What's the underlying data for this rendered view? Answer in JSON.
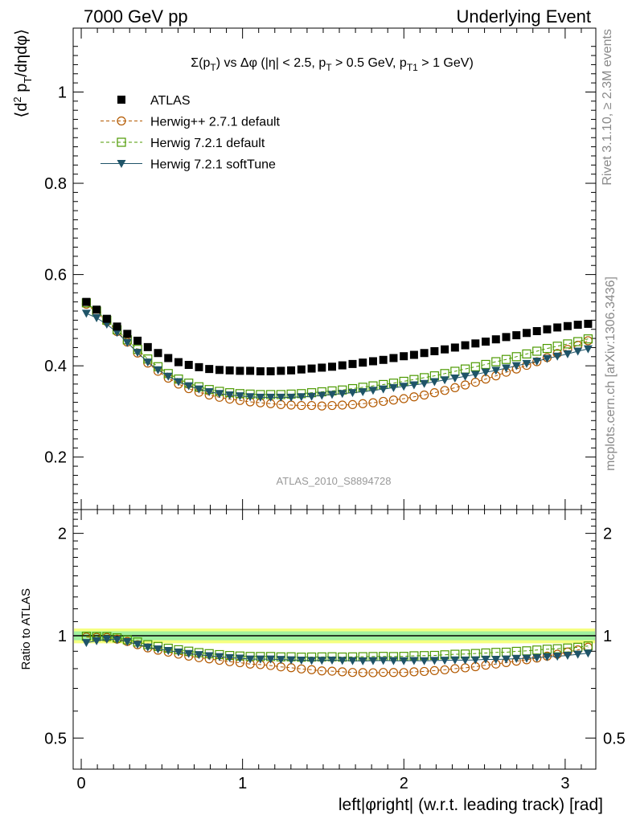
{
  "header": {
    "left": "7000 GeV pp",
    "right": "Underlying Event"
  },
  "side_labels": {
    "rivet": "Rivet 3.1.10, ≥ 2.3M events",
    "mcplots": "mcplots.cern.ch [arXiv:1306.3436]"
  },
  "plot_title": "Σ(p_T) vs Δφ (|η| < 2.5, p_T > 0.5 GeV, p_T1 > 1 GeV)",
  "analysis_label": "ATLAS_2010_S8894728",
  "colors": {
    "atlas": "#000000",
    "herwigpp": "#b35900",
    "herwig721": "#4c9a00",
    "softtune": "#1f5468",
    "band_outer": "#f5ff80",
    "band_inner": "#9ff09f"
  },
  "chart_data": [
    {
      "type": "scatter",
      "panel": "main",
      "title": "Σ(p_T) vs Δφ (|η| < 2.5, p_T > 0.5 GeV, p_T1 > 1 GeV)",
      "xlabel": "",
      "ylabel": "⟨d² p_T/dηdφ⟩",
      "xlim": [
        -0.05,
        3.19
      ],
      "ylim": [
        0.085,
        1.14
      ],
      "yticks": [
        0.2,
        0.4,
        0.6,
        0.8,
        1
      ],
      "ytick_labels": [
        "0.2",
        "0.4",
        "0.6",
        "0.8",
        "1"
      ],
      "legend_position": "top-left",
      "x": [
        0.0317,
        0.0952,
        0.1587,
        0.2221,
        0.2856,
        0.3491,
        0.4126,
        0.476,
        0.5395,
        0.603,
        0.6665,
        0.7299,
        0.7934,
        0.8569,
        0.9204,
        0.9839,
        1.0473,
        1.1108,
        1.1743,
        1.2378,
        1.3012,
        1.3647,
        1.4282,
        1.4917,
        1.5551,
        1.6186,
        1.6821,
        1.7456,
        1.8091,
        1.8725,
        1.936,
        1.9995,
        2.063,
        2.1264,
        2.1899,
        2.2534,
        2.3169,
        2.3803,
        2.4438,
        2.5073,
        2.5708,
        2.6343,
        2.6977,
        2.7612,
        2.8247,
        2.8882,
        2.9516,
        3.0151,
        3.0786,
        3.1421
      ],
      "series": [
        {
          "name": "ATLAS",
          "marker": "square",
          "values": [
            0.54,
            0.523,
            0.503,
            0.486,
            0.47,
            0.455,
            0.441,
            0.428,
            0.417,
            0.408,
            0.402,
            0.397,
            0.393,
            0.391,
            0.39,
            0.389,
            0.389,
            0.388,
            0.388,
            0.389,
            0.39,
            0.392,
            0.394,
            0.396,
            0.398,
            0.401,
            0.404,
            0.407,
            0.41,
            0.413,
            0.417,
            0.421,
            0.424,
            0.428,
            0.432,
            0.436,
            0.44,
            0.445,
            0.449,
            0.453,
            0.458,
            0.463,
            0.467,
            0.472,
            0.476,
            0.48,
            0.484,
            0.487,
            0.49,
            0.492
          ]
        },
        {
          "name": "Herwig++ 2.7.1 default",
          "marker": "open-circle",
          "values": [
            0.535,
            0.517,
            0.497,
            0.475,
            0.452,
            0.428,
            0.406,
            0.388,
            0.373,
            0.36,
            0.35,
            0.342,
            0.336,
            0.331,
            0.327,
            0.324,
            0.321,
            0.319,
            0.317,
            0.315,
            0.314,
            0.313,
            0.313,
            0.312,
            0.313,
            0.314,
            0.315,
            0.317,
            0.319,
            0.322,
            0.325,
            0.328,
            0.332,
            0.336,
            0.341,
            0.346,
            0.352,
            0.358,
            0.364,
            0.371,
            0.378,
            0.386,
            0.393,
            0.401,
            0.409,
            0.418,
            0.427,
            0.436,
            0.445,
            0.455
          ]
        },
        {
          "name": "Herwig 7.2.1 default",
          "marker": "open-square",
          "values": [
            0.538,
            0.52,
            0.5,
            0.479,
            0.457,
            0.436,
            0.415,
            0.398,
            0.383,
            0.371,
            0.362,
            0.354,
            0.348,
            0.344,
            0.341,
            0.339,
            0.338,
            0.337,
            0.337,
            0.337,
            0.338,
            0.339,
            0.341,
            0.343,
            0.345,
            0.347,
            0.35,
            0.353,
            0.356,
            0.359,
            0.362,
            0.366,
            0.37,
            0.374,
            0.378,
            0.383,
            0.388,
            0.393,
            0.398,
            0.403,
            0.409,
            0.414,
            0.42,
            0.426,
            0.432,
            0.438,
            0.443,
            0.448,
            0.453,
            0.459
          ]
        },
        {
          "name": "Herwig 7.2.1 softTune",
          "marker": "filled-triangle-down",
          "values": [
            0.515,
            0.505,
            0.491,
            0.473,
            0.451,
            0.429,
            0.408,
            0.391,
            0.377,
            0.365,
            0.356,
            0.349,
            0.343,
            0.339,
            0.336,
            0.334,
            0.332,
            0.331,
            0.331,
            0.331,
            0.331,
            0.332,
            0.333,
            0.335,
            0.337,
            0.339,
            0.341,
            0.343,
            0.346,
            0.349,
            0.352,
            0.355,
            0.358,
            0.361,
            0.365,
            0.369,
            0.373,
            0.377,
            0.381,
            0.386,
            0.39,
            0.395,
            0.4,
            0.405,
            0.41,
            0.416,
            0.421,
            0.426,
            0.432,
            0.437
          ]
        }
      ]
    },
    {
      "type": "scatter",
      "panel": "ratio",
      "xlabel": "left|φright| (w.r.t. leading track) [rad]",
      "ylabel": "Ratio to ATLAS",
      "xlim": [
        -0.05,
        3.19
      ],
      "ylim": [
        0.405,
        2.35
      ],
      "log_y": true,
      "xticks": [
        0,
        1,
        2,
        3
      ],
      "xtick_labels": [
        "0",
        "1",
        "2",
        "3"
      ],
      "yticks": [
        0.5,
        1,
        2
      ],
      "ytick_labels": [
        "0.5",
        "1",
        "2"
      ],
      "band": {
        "outer": [
          0.95,
          1.05
        ],
        "inner": [
          0.97,
          1.03
        ]
      },
      "reference_line": 1
    }
  ]
}
